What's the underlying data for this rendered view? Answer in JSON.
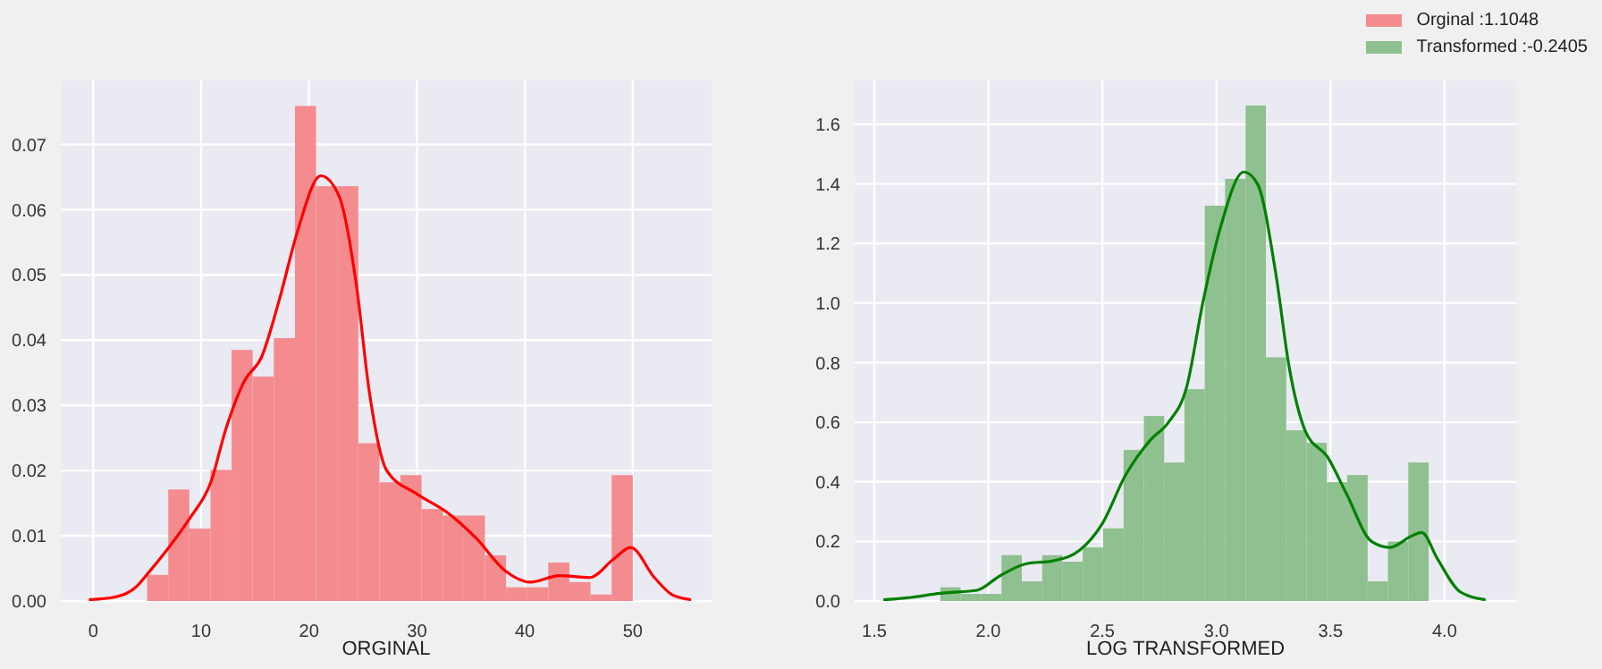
{
  "chart_data": [
    {
      "type": "histogram",
      "xlabel": "ORGINAL",
      "xlim": [
        -3,
        57.3
      ],
      "ylim": [
        0,
        0.0798
      ],
      "xticks": [
        0,
        10,
        20,
        30,
        40,
        50
      ],
      "yticks": [
        {
          "value": 0,
          "label": "0.00"
        },
        {
          "value": 0.01,
          "label": "0.01"
        },
        {
          "value": 0.02,
          "label": "0.02"
        },
        {
          "value": 0.03,
          "label": "0.03"
        },
        {
          "value": 0.04,
          "label": "0.04"
        },
        {
          "value": 0.05,
          "label": "0.05"
        },
        {
          "value": 0.06,
          "label": "0.06"
        },
        {
          "value": 0.07,
          "label": "0.07"
        }
      ],
      "grid": true,
      "legend": "top right",
      "series": [
        {
          "type": "histogram",
          "name": "Orginal :1.1048",
          "color": "#f48c8f",
          "bins": [
            5,
            6.96,
            8.91,
            10.87,
            12.83,
            14.78,
            16.74,
            18.7,
            20.65,
            22.61,
            24.57,
            26.52,
            28.48,
            30.43,
            32.39,
            34.35,
            36.3,
            38.26,
            40.22,
            42.17,
            44.13,
            46.09,
            48.04,
            50
          ],
          "values": [
            0.004,
            0.0171,
            0.0111,
            0.0201,
            0.0385,
            0.0344,
            0.0403,
            0.0759,
            0.0636,
            0.0636,
            0.0242,
            0.0182,
            0.0193,
            0.0141,
            0.0131,
            0.0131,
            0.007,
            0.0021,
            0.0021,
            0.0059,
            0.0029,
            0.001,
            0.0193
          ]
        },
        {
          "type": "line",
          "color": "#ff0000",
          "x": [
            -0.4,
            2,
            4,
            5,
            7,
            9,
            10.9,
            12.3,
            14,
            15.6,
            17.3,
            18.9,
            21.1,
            22.8,
            24.4,
            25.6,
            27.2,
            30,
            32.7,
            35.5,
            38.2,
            40.5,
            43.2,
            46,
            48.2,
            49.8,
            52,
            53.7,
            55.4
          ],
          "values": [
            0.0002,
            0.0006,
            0.0022,
            0.0041,
            0.0082,
            0.0128,
            0.0182,
            0.0264,
            0.0337,
            0.0374,
            0.0465,
            0.0565,
            0.0652,
            0.062,
            0.0483,
            0.0319,
            0.02,
            0.0164,
            0.0137,
            0.0096,
            0.0046,
            0.0029,
            0.0039,
            0.0036,
            0.0064,
            0.0082,
            0.0036,
            0.0009,
            0.0002
          ]
        }
      ]
    },
    {
      "type": "histogram",
      "xlabel": "LOG TRANSFORMED",
      "xlim": [
        1.414,
        4.314
      ],
      "ylim": [
        0,
        1.747
      ],
      "xticks": [
        {
          "value": 1.5,
          "label": "1.5"
        },
        {
          "value": 2,
          "label": "2.0"
        },
        {
          "value": 2.5,
          "label": "2.5"
        },
        {
          "value": 3,
          "label": "3.0"
        },
        {
          "value": 3.5,
          "label": "3.5"
        },
        {
          "value": 4,
          "label": "4.0"
        }
      ],
      "yticks": [
        {
          "value": 0,
          "label": "0.0"
        },
        {
          "value": 0.2,
          "label": "0.2"
        },
        {
          "value": 0.4,
          "label": "0.4"
        },
        {
          "value": 0.6,
          "label": "0.6"
        },
        {
          "value": 0.8,
          "label": "0.8"
        },
        {
          "value": 1,
          "label": "1.0"
        },
        {
          "value": 1.2,
          "label": "1.2"
        },
        {
          "value": 1.4,
          "label": "1.4"
        },
        {
          "value": 1.6,
          "label": "1.6"
        }
      ],
      "grid": true,
      "legend": "top right",
      "series": [
        {
          "type": "histogram",
          "name": "Transformed :-0.2405",
          "color": "#8fc08f",
          "bins": [
            1.79,
            1.879,
            1.968,
            2.058,
            2.147,
            2.236,
            2.325,
            2.414,
            2.503,
            2.593,
            2.682,
            2.771,
            2.86,
            2.949,
            3.038,
            3.128,
            3.217,
            3.306,
            3.395,
            3.484,
            3.573,
            3.663,
            3.752,
            3.841,
            3.93
          ],
          "values": [
            0.046,
            0.024,
            0.024,
            0.154,
            0.066,
            0.154,
            0.132,
            0.18,
            0.244,
            0.507,
            0.621,
            0.465,
            0.711,
            1.327,
            1.417,
            1.663,
            0.818,
            0.573,
            0.531,
            0.399,
            0.423,
            0.066,
            0.2,
            0.465
          ]
        },
        {
          "type": "line",
          "color": "#008000",
          "x": [
            1.54,
            1.66,
            1.79,
            1.82,
            1.95,
            2.05,
            2.16,
            2.29,
            2.4,
            2.5,
            2.6,
            2.71,
            2.79,
            2.87,
            2.94,
            3.02,
            3.12,
            3.18,
            3.26,
            3.32,
            3.39,
            3.49,
            3.57,
            3.68,
            3.76,
            3.86,
            3.9,
            3.97,
            4.07,
            4.18
          ],
          "values": [
            0.004,
            0.012,
            0.026,
            0.028,
            0.036,
            0.084,
            0.124,
            0.136,
            0.17,
            0.26,
            0.42,
            0.54,
            0.6,
            0.72,
            1.0,
            1.26,
            1.44,
            1.4,
            1.1,
            0.78,
            0.57,
            0.48,
            0.36,
            0.2,
            0.18,
            0.22,
            0.23,
            0.14,
            0.03,
            0.004
          ]
        }
      ]
    }
  ]
}
